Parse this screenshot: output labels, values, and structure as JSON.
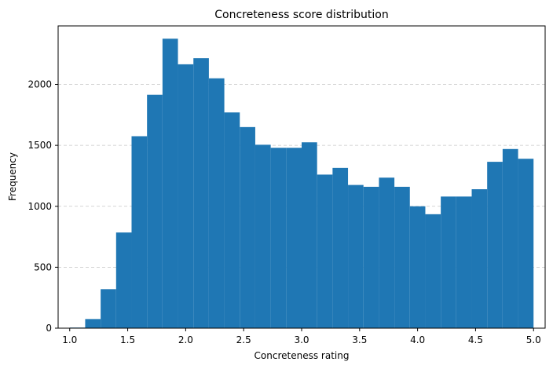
{
  "chart_data": {
    "type": "bar",
    "title": "Concreteness score distribution",
    "xlabel": "Concreteness rating",
    "ylabel": "Frequency",
    "xlim": [
      0.9,
      5.1
    ],
    "ylim": [
      0,
      2480
    ],
    "bin_edges": [
      1.0,
      1.1333,
      1.2667,
      1.4,
      1.5333,
      1.6667,
      1.8,
      1.9333,
      2.0667,
      2.2,
      2.3333,
      2.4667,
      2.6,
      2.7333,
      2.8667,
      3.0,
      3.1333,
      3.2667,
      3.4,
      3.5333,
      3.6667,
      3.8,
      3.9333,
      4.0667,
      4.2,
      4.3333,
      4.4667,
      4.6,
      4.7333,
      4.8667,
      5.0
    ],
    "values": [
      5,
      75,
      320,
      785,
      1575,
      1915,
      2375,
      2165,
      2215,
      2050,
      1770,
      1650,
      1505,
      1480,
      1480,
      1525,
      1260,
      1315,
      1175,
      1160,
      1235,
      1160,
      1000,
      935,
      1080,
      1080,
      1140,
      1365,
      1470,
      1390
    ],
    "xticks": [
      1.0,
      1.5,
      2.0,
      2.5,
      3.0,
      3.5,
      4.0,
      4.5,
      5.0
    ],
    "xtick_labels": [
      "1.0",
      "1.5",
      "2.0",
      "2.5",
      "3.0",
      "3.5",
      "4.0",
      "4.5",
      "5.0"
    ],
    "yticks": [
      0,
      500,
      1000,
      1500,
      2000
    ],
    "ytick_labels": [
      "0",
      "500",
      "1000",
      "1500",
      "2000"
    ],
    "grid": "y-dashed",
    "color": "#1f77b4"
  }
}
